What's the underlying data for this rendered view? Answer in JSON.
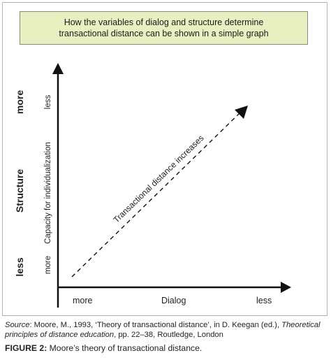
{
  "header": {
    "line1": "How the variables of dialog and structure determine",
    "line2": "transactional distance can be shown in a simple graph"
  },
  "axes": {
    "y_outer": {
      "label": "Structure",
      "top": "more",
      "bottom": "less"
    },
    "y_inner": {
      "label": "Capacity for individualization",
      "top": "less",
      "bottom": "more"
    },
    "x": {
      "label": "Dialog",
      "left": "more",
      "right": "less"
    }
  },
  "diagonal": {
    "label": "Transactional distance increases"
  },
  "source": {
    "prefix": "Source",
    "text": ": Moore, M., 1993, ‘Theory of transactional distance’, in D. Keegan (ed.), ",
    "title": "Theoretical principles of distance education",
    "suffix": ", pp. 22–38, Routledge, London"
  },
  "caption": {
    "label": "FIGURE 2:",
    "text": " Moore’s theory of transactional distance."
  },
  "colors": {
    "title_bg": "#e8f0c2",
    "frame": "#b3b3b3",
    "ink": "#111111"
  }
}
